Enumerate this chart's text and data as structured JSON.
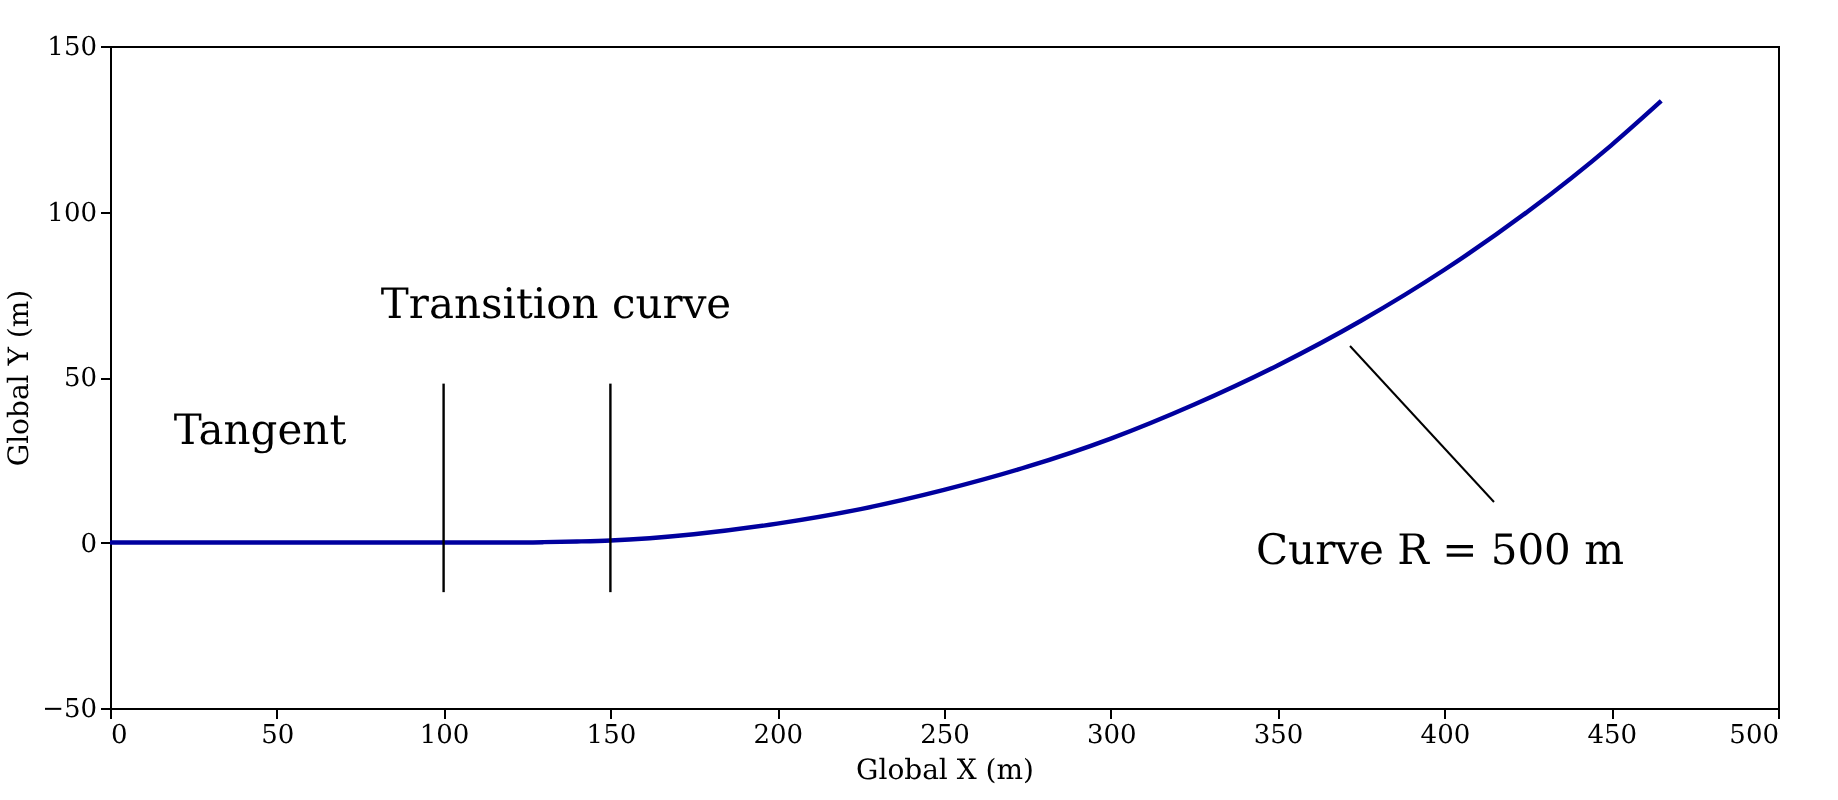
{
  "chart_data": {
    "type": "line",
    "xlabel": "Global X (m)",
    "ylabel": "Global Y (m)",
    "xlim": [
      0,
      500
    ],
    "xticks": [
      0,
      50,
      100,
      150,
      200,
      250,
      300,
      350,
      400,
      450,
      500
    ],
    "ylim": [
      -50,
      150
    ],
    "yticks": [
      -50,
      0,
      50,
      100,
      150
    ],
    "grid": false,
    "series": [
      {
        "color": "#00009e",
        "x": [
          0,
          50,
          100,
          110,
          120,
          130,
          140,
          150,
          175,
          200,
          225,
          250,
          275,
          300,
          325,
          350,
          375,
          400,
          425,
          450,
          465
        ],
        "values": [
          0,
          0,
          0,
          0,
          0,
          0.1,
          0.3,
          0.6,
          2.5,
          5.7,
          10.1,
          15.9,
          22.9,
          31.4,
          41.7,
          53.5,
          67,
          82.4,
          100,
          120,
          133.4
        ]
      },
      {
        "color": "#000000",
        "x": [
          100,
          100
        ],
        "values": [
          -15,
          48
        ]
      },
      {
        "color": "#000000",
        "x": [
          150,
          150
        ],
        "values": [
          -15,
          48
        ]
      }
    ],
    "annotations": [
      "Tangent",
      "Transition curve",
      "Curve R = 500 m"
    ]
  }
}
